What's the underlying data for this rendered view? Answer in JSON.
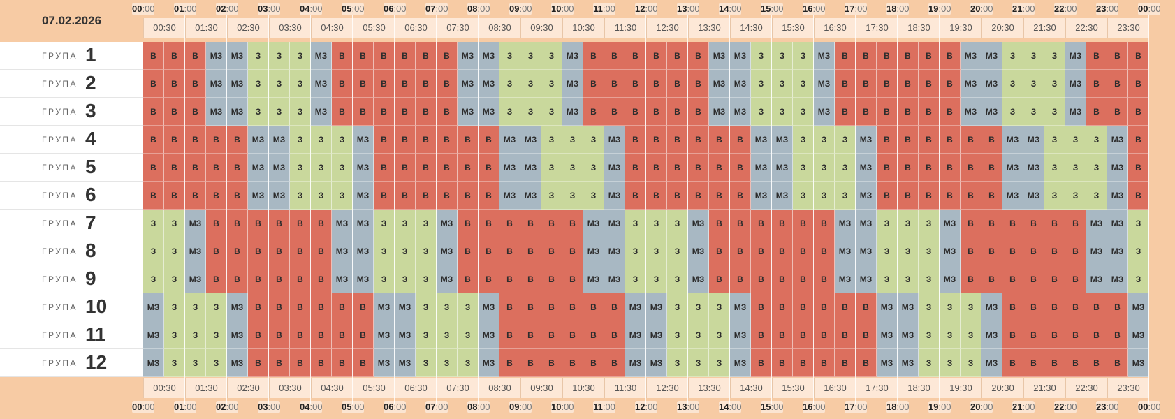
{
  "date": "07.02.2026",
  "row_word": "ГРУПА",
  "colors": {
    "В": "#dc6f5e",
    "МЗ": "#a8b8c3",
    "З": "#c9d89c",
    "header_band": "#f7cba4"
  },
  "hours": [
    {
      "h": "00",
      "m": ":00"
    },
    {
      "h": "01",
      "m": ":00"
    },
    {
      "h": "02",
      "m": ":00"
    },
    {
      "h": "03",
      "m": ":00"
    },
    {
      "h": "04",
      "m": ":00"
    },
    {
      "h": "05",
      "m": ":00"
    },
    {
      "h": "06",
      "m": ":00"
    },
    {
      "h": "07",
      "m": ":00"
    },
    {
      "h": "08",
      "m": ":00"
    },
    {
      "h": "09",
      "m": ":00"
    },
    {
      "h": "10",
      "m": ":00"
    },
    {
      "h": "11",
      "m": ":00"
    },
    {
      "h": "12",
      "m": ":00"
    },
    {
      "h": "13",
      "m": ":00"
    },
    {
      "h": "14",
      "m": ":00"
    },
    {
      "h": "15",
      "m": ":00"
    },
    {
      "h": "16",
      "m": ":00"
    },
    {
      "h": "17",
      "m": ":00"
    },
    {
      "h": "18",
      "m": ":00"
    },
    {
      "h": "19",
      "m": ":00"
    },
    {
      "h": "20",
      "m": ":00"
    },
    {
      "h": "21",
      "m": ":00"
    },
    {
      "h": "22",
      "m": ":00"
    },
    {
      "h": "23",
      "m": ":00"
    },
    {
      "h": "00",
      "m": ":00"
    }
  ],
  "half_hours": [
    "00:30",
    "01:30",
    "02:30",
    "03:30",
    "04:30",
    "05:30",
    "06:30",
    "07:30",
    "08:30",
    "09:30",
    "10:30",
    "11:30",
    "12:30",
    "13:30",
    "14:30",
    "15:30",
    "16:30",
    "17:30",
    "18:30",
    "19:30",
    "20:30",
    "21:30",
    "22:30",
    "23:30"
  ],
  "groups": [
    {
      "label": "1",
      "cells": [
        "В",
        "В",
        "В",
        "МЗ",
        "МЗ",
        "З",
        "З",
        "З",
        "МЗ",
        "В",
        "В",
        "В",
        "В",
        "В",
        "В",
        "МЗ",
        "МЗ",
        "З",
        "З",
        "З",
        "МЗ",
        "В",
        "В",
        "В",
        "В",
        "В",
        "В",
        "МЗ",
        "МЗ",
        "З",
        "З",
        "З",
        "МЗ",
        "В",
        "В",
        "В",
        "В",
        "В",
        "В",
        "МЗ",
        "МЗ",
        "З",
        "З",
        "З",
        "МЗ",
        "В",
        "В",
        "В"
      ]
    },
    {
      "label": "2",
      "cells": [
        "В",
        "В",
        "В",
        "МЗ",
        "МЗ",
        "З",
        "З",
        "З",
        "МЗ",
        "В",
        "В",
        "В",
        "В",
        "В",
        "В",
        "МЗ",
        "МЗ",
        "З",
        "З",
        "З",
        "МЗ",
        "В",
        "В",
        "В",
        "В",
        "В",
        "В",
        "МЗ",
        "МЗ",
        "З",
        "З",
        "З",
        "МЗ",
        "В",
        "В",
        "В",
        "В",
        "В",
        "В",
        "МЗ",
        "МЗ",
        "З",
        "З",
        "З",
        "МЗ",
        "В",
        "В",
        "В"
      ]
    },
    {
      "label": "3",
      "cells": [
        "В",
        "В",
        "В",
        "МЗ",
        "МЗ",
        "З",
        "З",
        "З",
        "МЗ",
        "В",
        "В",
        "В",
        "В",
        "В",
        "В",
        "МЗ",
        "МЗ",
        "З",
        "З",
        "З",
        "МЗ",
        "В",
        "В",
        "В",
        "В",
        "В",
        "В",
        "МЗ",
        "МЗ",
        "З",
        "З",
        "З",
        "МЗ",
        "В",
        "В",
        "В",
        "В",
        "В",
        "В",
        "МЗ",
        "МЗ",
        "З",
        "З",
        "З",
        "МЗ",
        "В",
        "В",
        "В"
      ]
    },
    {
      "label": "4",
      "cells": [
        "В",
        "В",
        "В",
        "В",
        "В",
        "МЗ",
        "МЗ",
        "З",
        "З",
        "З",
        "МЗ",
        "В",
        "В",
        "В",
        "В",
        "В",
        "В",
        "МЗ",
        "МЗ",
        "З",
        "З",
        "З",
        "МЗ",
        "В",
        "В",
        "В",
        "В",
        "В",
        "В",
        "МЗ",
        "МЗ",
        "З",
        "З",
        "З",
        "МЗ",
        "В",
        "В",
        "В",
        "В",
        "В",
        "В",
        "МЗ",
        "МЗ",
        "З",
        "З",
        "З",
        "МЗ",
        "В"
      ]
    },
    {
      "label": "5",
      "cells": [
        "В",
        "В",
        "В",
        "В",
        "В",
        "МЗ",
        "МЗ",
        "З",
        "З",
        "З",
        "МЗ",
        "В",
        "В",
        "В",
        "В",
        "В",
        "В",
        "МЗ",
        "МЗ",
        "З",
        "З",
        "З",
        "МЗ",
        "В",
        "В",
        "В",
        "В",
        "В",
        "В",
        "МЗ",
        "МЗ",
        "З",
        "З",
        "З",
        "МЗ",
        "В",
        "В",
        "В",
        "В",
        "В",
        "В",
        "МЗ",
        "МЗ",
        "З",
        "З",
        "З",
        "МЗ",
        "В"
      ]
    },
    {
      "label": "6",
      "cells": [
        "В",
        "В",
        "В",
        "В",
        "В",
        "МЗ",
        "МЗ",
        "З",
        "З",
        "З",
        "МЗ",
        "В",
        "В",
        "В",
        "В",
        "В",
        "В",
        "МЗ",
        "МЗ",
        "З",
        "З",
        "З",
        "МЗ",
        "В",
        "В",
        "В",
        "В",
        "В",
        "В",
        "МЗ",
        "МЗ",
        "З",
        "З",
        "З",
        "МЗ",
        "В",
        "В",
        "В",
        "В",
        "В",
        "В",
        "МЗ",
        "МЗ",
        "З",
        "З",
        "З",
        "МЗ",
        "В"
      ]
    },
    {
      "label": "7",
      "cells": [
        "З",
        "З",
        "МЗ",
        "В",
        "В",
        "В",
        "В",
        "В",
        "В",
        "МЗ",
        "МЗ",
        "З",
        "З",
        "З",
        "МЗ",
        "В",
        "В",
        "В",
        "В",
        "В",
        "В",
        "МЗ",
        "МЗ",
        "З",
        "З",
        "З",
        "МЗ",
        "В",
        "В",
        "В",
        "В",
        "В",
        "В",
        "МЗ",
        "МЗ",
        "З",
        "З",
        "З",
        "МЗ",
        "В",
        "В",
        "В",
        "В",
        "В",
        "В",
        "МЗ",
        "МЗ",
        "З"
      ]
    },
    {
      "label": "8",
      "cells": [
        "З",
        "З",
        "МЗ",
        "В",
        "В",
        "В",
        "В",
        "В",
        "В",
        "МЗ",
        "МЗ",
        "З",
        "З",
        "З",
        "МЗ",
        "В",
        "В",
        "В",
        "В",
        "В",
        "В",
        "МЗ",
        "МЗ",
        "З",
        "З",
        "З",
        "МЗ",
        "В",
        "В",
        "В",
        "В",
        "В",
        "В",
        "МЗ",
        "МЗ",
        "З",
        "З",
        "З",
        "МЗ",
        "В",
        "В",
        "В",
        "В",
        "В",
        "В",
        "МЗ",
        "МЗ",
        "З"
      ]
    },
    {
      "label": "9",
      "cells": [
        "З",
        "З",
        "МЗ",
        "В",
        "В",
        "В",
        "В",
        "В",
        "В",
        "МЗ",
        "МЗ",
        "З",
        "З",
        "З",
        "МЗ",
        "В",
        "В",
        "В",
        "В",
        "В",
        "В",
        "МЗ",
        "МЗ",
        "З",
        "З",
        "З",
        "МЗ",
        "В",
        "В",
        "В",
        "В",
        "В",
        "В",
        "МЗ",
        "МЗ",
        "З",
        "З",
        "З",
        "МЗ",
        "В",
        "В",
        "В",
        "В",
        "В",
        "В",
        "МЗ",
        "МЗ",
        "З"
      ]
    },
    {
      "label": "10",
      "cells": [
        "МЗ",
        "З",
        "З",
        "З",
        "МЗ",
        "В",
        "В",
        "В",
        "В",
        "В",
        "В",
        "МЗ",
        "МЗ",
        "З",
        "З",
        "З",
        "МЗ",
        "В",
        "В",
        "В",
        "В",
        "В",
        "В",
        "МЗ",
        "МЗ",
        "З",
        "З",
        "З",
        "МЗ",
        "В",
        "В",
        "В",
        "В",
        "В",
        "В",
        "МЗ",
        "МЗ",
        "З",
        "З",
        "З",
        "МЗ",
        "В",
        "В",
        "В",
        "В",
        "В",
        "В",
        "МЗ"
      ]
    },
    {
      "label": "11",
      "cells": [
        "МЗ",
        "З",
        "З",
        "З",
        "МЗ",
        "В",
        "В",
        "В",
        "В",
        "В",
        "В",
        "МЗ",
        "МЗ",
        "З",
        "З",
        "З",
        "МЗ",
        "В",
        "В",
        "В",
        "В",
        "В",
        "В",
        "МЗ",
        "МЗ",
        "З",
        "З",
        "З",
        "МЗ",
        "В",
        "В",
        "В",
        "В",
        "В",
        "В",
        "МЗ",
        "МЗ",
        "З",
        "З",
        "З",
        "МЗ",
        "В",
        "В",
        "В",
        "В",
        "В",
        "В",
        "МЗ"
      ]
    },
    {
      "label": "12",
      "cells": [
        "МЗ",
        "З",
        "З",
        "З",
        "МЗ",
        "В",
        "В",
        "В",
        "В",
        "В",
        "В",
        "МЗ",
        "МЗ",
        "З",
        "З",
        "З",
        "МЗ",
        "В",
        "В",
        "В",
        "В",
        "В",
        "В",
        "МЗ",
        "МЗ",
        "З",
        "З",
        "З",
        "МЗ",
        "В",
        "В",
        "В",
        "В",
        "В",
        "В",
        "МЗ",
        "МЗ",
        "З",
        "З",
        "З",
        "МЗ",
        "В",
        "В",
        "В",
        "В",
        "В",
        "В",
        "МЗ"
      ]
    }
  ]
}
